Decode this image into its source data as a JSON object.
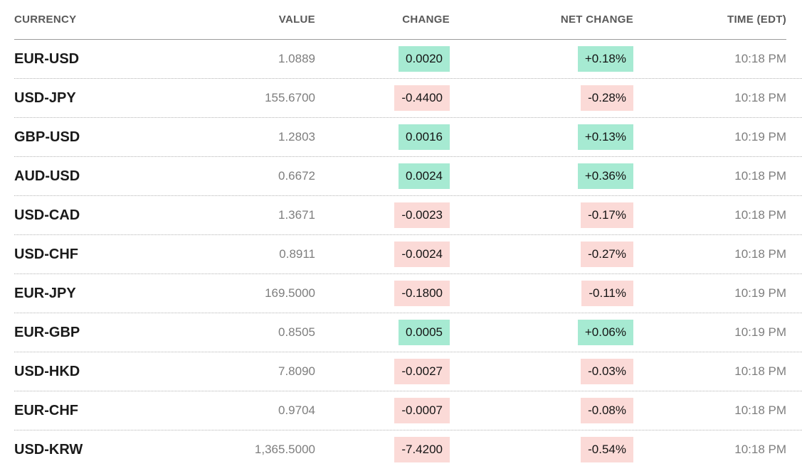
{
  "table": {
    "columns": [
      {
        "key": "currency",
        "label": "CURRENCY"
      },
      {
        "key": "value",
        "label": "VALUE"
      },
      {
        "key": "change",
        "label": "CHANGE"
      },
      {
        "key": "net_change",
        "label": "NET CHANGE"
      },
      {
        "key": "time",
        "label": "TIME (EDT)"
      }
    ],
    "colors": {
      "positive_bg": "#a6ead2",
      "negative_bg": "#fbdad7",
      "header_text": "#595959",
      "pair_text": "#1a1a1a",
      "muted_text": "#7e7e7e"
    },
    "rows": [
      {
        "currency": "EUR-USD",
        "value": "1.0889",
        "change": "0.0020",
        "net_change": "+0.18%",
        "direction": "up",
        "time": "10:18 PM"
      },
      {
        "currency": "USD-JPY",
        "value": "155.6700",
        "change": "-0.4400",
        "net_change": "-0.28%",
        "direction": "down",
        "time": "10:18 PM"
      },
      {
        "currency": "GBP-USD",
        "value": "1.2803",
        "change": "0.0016",
        "net_change": "+0.13%",
        "direction": "up",
        "time": "10:19 PM"
      },
      {
        "currency": "AUD-USD",
        "value": "0.6672",
        "change": "0.0024",
        "net_change": "+0.36%",
        "direction": "up",
        "time": "10:18 PM"
      },
      {
        "currency": "USD-CAD",
        "value": "1.3671",
        "change": "-0.0023",
        "net_change": "-0.17%",
        "direction": "down",
        "time": "10:18 PM"
      },
      {
        "currency": "USD-CHF",
        "value": "0.8911",
        "change": "-0.0024",
        "net_change": "-0.27%",
        "direction": "down",
        "time": "10:18 PM"
      },
      {
        "currency": "EUR-JPY",
        "value": "169.5000",
        "change": "-0.1800",
        "net_change": "-0.11%",
        "direction": "down",
        "time": "10:19 PM"
      },
      {
        "currency": "EUR-GBP",
        "value": "0.8505",
        "change": "0.0005",
        "net_change": "+0.06%",
        "direction": "up",
        "time": "10:19 PM"
      },
      {
        "currency": "USD-HKD",
        "value": "7.8090",
        "change": "-0.0027",
        "net_change": "-0.03%",
        "direction": "down",
        "time": "10:18 PM"
      },
      {
        "currency": "EUR-CHF",
        "value": "0.9704",
        "change": "-0.0007",
        "net_change": "-0.08%",
        "direction": "down",
        "time": "10:18 PM"
      },
      {
        "currency": "USD-KRW",
        "value": "1,365.5000",
        "change": "-7.4200",
        "net_change": "-0.54%",
        "direction": "down",
        "time": "10:18 PM"
      }
    ]
  }
}
